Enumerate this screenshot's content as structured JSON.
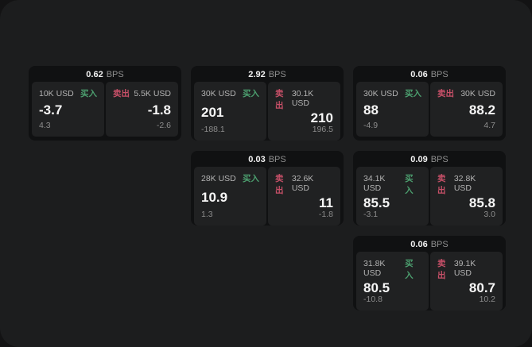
{
  "labels": {
    "buy": "买入",
    "sell": "卖出",
    "bps_unit": "BPS"
  },
  "colors": {
    "buy_green": "#4c9f6f",
    "sell_red": "#c75068"
  },
  "cards": [
    {
      "grid_row": 1,
      "grid_col": 1,
      "spread_bps": "0.62",
      "buy": {
        "amount": "10K USD",
        "price": "-3.7",
        "delta": "4.3"
      },
      "sell": {
        "amount": "5.5K USD",
        "price": "-1.8",
        "delta": "-2.6"
      }
    },
    {
      "grid_row": 1,
      "grid_col": 2,
      "spread_bps": "2.92",
      "buy": {
        "amount": "30K USD",
        "price": "201",
        "delta": "-188.1"
      },
      "sell": {
        "amount": "30.1K USD",
        "price": "210",
        "delta": "196.5"
      }
    },
    {
      "grid_row": 1,
      "grid_col": 3,
      "spread_bps": "0.06",
      "buy": {
        "amount": "30K USD",
        "price": "88",
        "delta": "-4.9"
      },
      "sell": {
        "amount": "30K USD",
        "price": "88.2",
        "delta": "4.7"
      }
    },
    {
      "grid_row": 2,
      "grid_col": 2,
      "spread_bps": "0.03",
      "buy": {
        "amount": "28K USD",
        "price": "10.9",
        "delta": "1.3"
      },
      "sell": {
        "amount": "32.6K USD",
        "price": "11",
        "delta": "-1.8"
      }
    },
    {
      "grid_row": 2,
      "grid_col": 3,
      "spread_bps": "0.09",
      "buy": {
        "amount": "34.1K USD",
        "price": "85.5",
        "delta": "-3.1"
      },
      "sell": {
        "amount": "32.8K USD",
        "price": "85.8",
        "delta": "3.0"
      }
    },
    {
      "grid_row": 3,
      "grid_col": 3,
      "spread_bps": "0.06",
      "buy": {
        "amount": "31.8K USD",
        "price": "80.5",
        "delta": "-10.8"
      },
      "sell": {
        "amount": "39.1K USD",
        "price": "80.7",
        "delta": "10.2"
      }
    }
  ]
}
